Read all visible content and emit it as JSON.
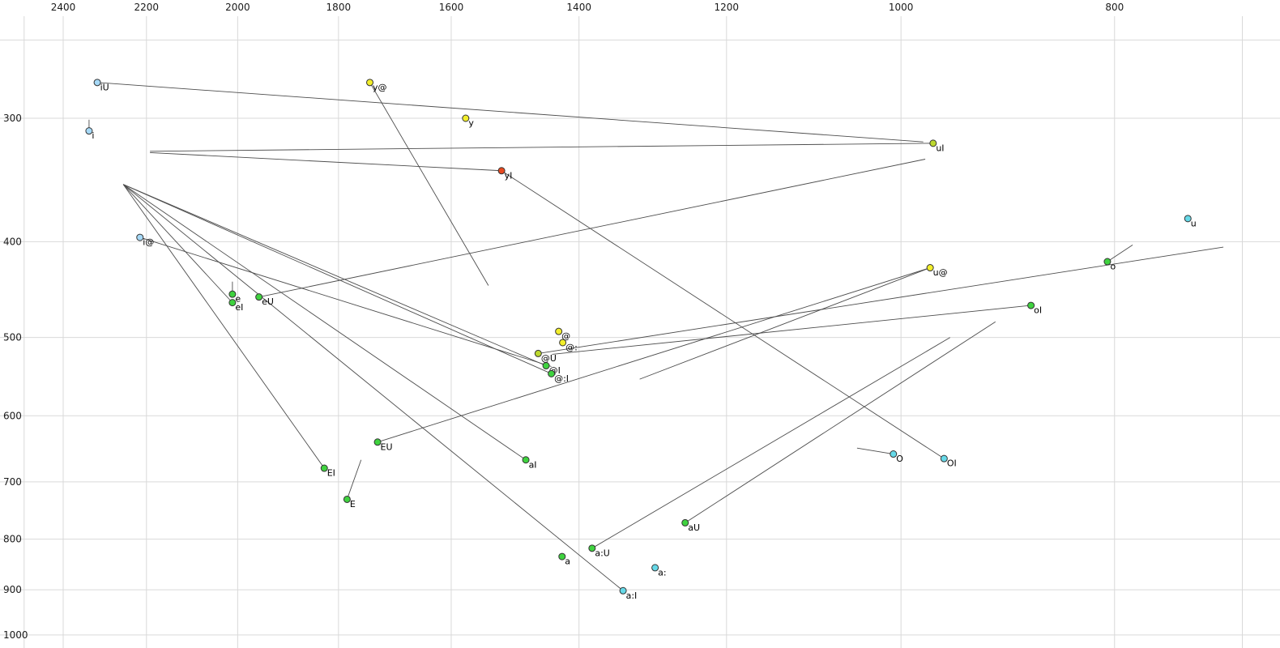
{
  "chart_data": {
    "type": "scatter",
    "title": "",
    "x_axis": {
      "side": "top",
      "scale": "log",
      "reversed": true,
      "ticks": [
        2400,
        2200,
        2000,
        1800,
        1600,
        1400,
        1200,
        1000,
        800
      ],
      "tick_labels": [
        "2400",
        "2200",
        "2000",
        "1800",
        "1600",
        "1400",
        "1200",
        "1000",
        "800"
      ],
      "unlabeled_gridlines": [
        2500,
        700
      ]
    },
    "y_axis": {
      "side": "left",
      "scale": "log",
      "reversed": true,
      "ticks": [
        300,
        400,
        500,
        600,
        700,
        800,
        900,
        1000
      ],
      "tick_labels": [
        "300",
        "400",
        "500",
        "600",
        "700",
        "800",
        "900",
        "1000"
      ],
      "unlabeled_gridlines": [
        250
      ]
    },
    "colors": {
      "background": "#ffffff",
      "grid": "#d9d9d9",
      "segment": "#4d4d4d",
      "point_outline": "#333333",
      "tick_text": "#1a1a1a",
      "label_text": "#000000"
    },
    "palette": {
      "lightblue": "#a6d9f7",
      "cyan": "#66d9e8",
      "yellow": "#f2ee2a",
      "yellowgreen": "#bcd82e",
      "green": "#3fd23f",
      "red": "#e8491f"
    },
    "points": [
      {
        "label": "iU",
        "f2": 2316,
        "f1": 276,
        "color": "lightblue"
      },
      {
        "label": "i",
        "f2": 2336,
        "f1": 309,
        "color": "lightblue"
      },
      {
        "label": "i@",
        "f2": 2215,
        "f1": 396,
        "color": "lightblue"
      },
      {
        "label": "y@",
        "f2": 1742,
        "f1": 276,
        "color": "yellow"
      },
      {
        "label": "y",
        "f2": 1576,
        "f1": 300,
        "color": "yellow"
      },
      {
        "label": "yI",
        "f2": 1518,
        "f1": 339,
        "color": "red"
      },
      {
        "label": "uI",
        "f2": 967,
        "f1": 318,
        "color": "yellowgreen"
      },
      {
        "label": "u",
        "f2": 741,
        "f1": 379,
        "color": "cyan"
      },
      {
        "label": "u@",
        "f2": 970,
        "f1": 425,
        "color": "yellow"
      },
      {
        "label": "o",
        "f2": 806,
        "f1": 419,
        "color": "green"
      },
      {
        "label": "oI",
        "f2": 873,
        "f1": 464,
        "color": "green"
      },
      {
        "label": "e",
        "f2": 2011,
        "f1": 452,
        "color": "green"
      },
      {
        "label": "eI",
        "f2": 2011,
        "f1": 461,
        "color": "green"
      },
      {
        "label": "eU",
        "f2": 1956,
        "f1": 455,
        "color": "green"
      },
      {
        "label": "@",
        "f2": 1430,
        "f1": 493,
        "color": "yellow"
      },
      {
        "label": "@:",
        "f2": 1424,
        "f1": 506,
        "color": "yellow"
      },
      {
        "label": "@U",
        "f2": 1461,
        "f1": 519,
        "color": "yellowgreen"
      },
      {
        "label": "@I",
        "f2": 1449,
        "f1": 534,
        "color": "green"
      },
      {
        "label": "@:I",
        "f2": 1441,
        "f1": 544,
        "color": "green"
      },
      {
        "label": "EU",
        "f2": 1728,
        "f1": 638,
        "color": "green"
      },
      {
        "label": "aI",
        "f2": 1480,
        "f1": 665,
        "color": "green"
      },
      {
        "label": "EI",
        "f2": 1827,
        "f1": 678,
        "color": "green"
      },
      {
        "label": "O",
        "f2": 1008,
        "f1": 656,
        "color": "cyan"
      },
      {
        "label": "OI",
        "f2": 956,
        "f1": 663,
        "color": "cyan"
      },
      {
        "label": "E",
        "f2": 1784,
        "f1": 729,
        "color": "green"
      },
      {
        "label": "aU",
        "f2": 1253,
        "f1": 770,
        "color": "green"
      },
      {
        "label": "a:U",
        "f2": 1381,
        "f1": 817,
        "color": "green"
      },
      {
        "label": "a",
        "f2": 1425,
        "f1": 833,
        "color": "green"
      },
      {
        "label": "a:",
        "f2": 1293,
        "f1": 855,
        "color": "cyan"
      },
      {
        "label": "a:I",
        "f2": 1337,
        "f1": 902,
        "color": "cyan"
      }
    ],
    "segments": [
      {
        "from": "iU",
        "to": [
          977,
          317
        ]
      },
      {
        "from": "uI",
        "to": [
          2192,
          324
        ]
      },
      {
        "from": "yI",
        "to": [
          2192,
          325
        ]
      },
      {
        "from": "y@",
        "to": [
          1539,
          443
        ]
      },
      {
        "from": "i@",
        "to": [
          1441,
          535
        ]
      },
      {
        "from": "eI",
        "to": [
          2254,
          350
        ]
      },
      {
        "from": "EI",
        "to": [
          2254,
          350
        ]
      },
      {
        "from": "aI",
        "to": [
          2254,
          350
        ]
      },
      {
        "from": "a:I",
        "to": [
          2254,
          350
        ]
      },
      {
        "from": "@I",
        "to": [
          2254,
          350
        ]
      },
      {
        "from": "@:I",
        "to": [
          2254,
          350
        ]
      },
      {
        "from": "eU",
        "to": [
          975,
          330
        ]
      },
      {
        "from": "EU",
        "to": [
          970,
          425
        ]
      },
      {
        "from": "@U",
        "to": [
          714,
          405
        ]
      },
      {
        "from": "aU",
        "to": [
          906,
          482
        ]
      },
      {
        "from": "a:U",
        "to": [
          950,
          500
        ]
      },
      {
        "from": "OI",
        "to": [
          1515,
          340
        ]
      },
      {
        "from": "oI",
        "to": [
          1440,
          520
        ]
      },
      {
        "from": "u@",
        "to": [
          1314,
          551
        ]
      },
      {
        "from": "o",
        "to": [
          785,
          403
        ]
      },
      {
        "from": "i",
        "to": [
          2336,
          301
        ]
      },
      {
        "from": "e",
        "to": [
          2011,
          439
        ]
      },
      {
        "from": "E",
        "to": [
          1758,
          665
        ]
      },
      {
        "from": "O",
        "to": [
          1047,
          647
        ]
      }
    ]
  }
}
